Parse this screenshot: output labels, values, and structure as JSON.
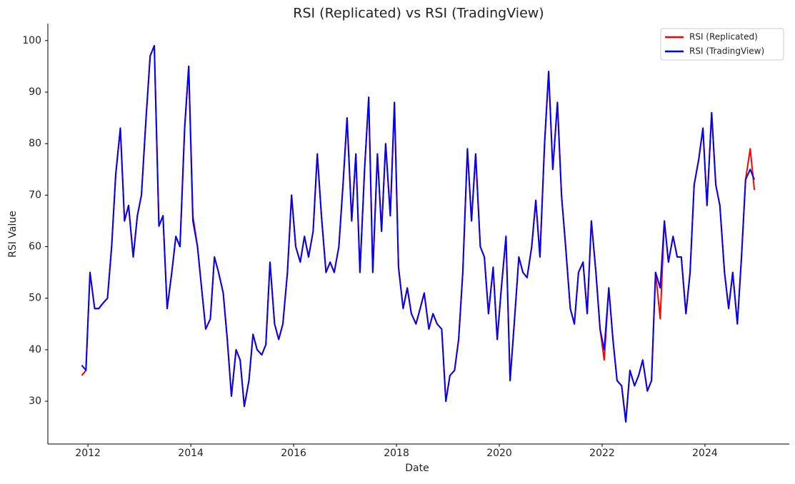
{
  "chart_data": {
    "type": "line",
    "title": "RSI (Replicated) vs RSI (TradingView)",
    "xlabel": "Date",
    "ylabel": "RSI Value",
    "xlim": [
      2011.22,
      2025.64
    ],
    "xticks": [
      2012,
      2014,
      2016,
      2018,
      2020,
      2022,
      2024
    ],
    "ylim": [
      21.7,
      103.3
    ],
    "yticks": [
      30,
      40,
      50,
      60,
      70,
      80,
      90,
      100
    ],
    "legend": "upper right",
    "x": [
      2011.88,
      2011.96,
      2012.04,
      2012.13,
      2012.21,
      2012.29,
      2012.38,
      2012.46,
      2012.54,
      2012.63,
      2012.71,
      2012.79,
      2012.88,
      2012.96,
      2013.04,
      2013.13,
      2013.21,
      2013.29,
      2013.38,
      2013.46,
      2013.54,
      2013.63,
      2013.71,
      2013.79,
      2013.88,
      2013.96,
      2014.04,
      2014.13,
      2014.21,
      2014.29,
      2014.38,
      2014.46,
      2014.54,
      2014.63,
      2014.71,
      2014.79,
      2014.88,
      2014.96,
      2015.04,
      2015.13,
      2015.21,
      2015.29,
      2015.38,
      2015.46,
      2015.54,
      2015.63,
      2015.71,
      2015.79,
      2015.88,
      2015.96,
      2016.04,
      2016.13,
      2016.21,
      2016.29,
      2016.38,
      2016.46,
      2016.54,
      2016.63,
      2016.71,
      2016.79,
      2016.88,
      2016.96,
      2017.04,
      2017.13,
      2017.21,
      2017.29,
      2017.38,
      2017.46,
      2017.54,
      2017.63,
      2017.71,
      2017.79,
      2017.88,
      2017.96,
      2018.04,
      2018.13,
      2018.21,
      2018.29,
      2018.38,
      2018.46,
      2018.54,
      2018.63,
      2018.71,
      2018.79,
      2018.88,
      2018.96,
      2019.04,
      2019.13,
      2019.21,
      2019.29,
      2019.38,
      2019.46,
      2019.54,
      2019.63,
      2019.71,
      2019.79,
      2019.88,
      2019.96,
      2020.04,
      2020.13,
      2020.21,
      2020.29,
      2020.38,
      2020.46,
      2020.54,
      2020.63,
      2020.71,
      2020.79,
      2020.88,
      2020.96,
      2021.04,
      2021.13,
      2021.21,
      2021.29,
      2021.38,
      2021.46,
      2021.54,
      2021.63,
      2021.71,
      2021.79,
      2021.88,
      2021.96,
      2022.04,
      2022.13,
      2022.21,
      2022.29,
      2022.38,
      2022.46,
      2022.54,
      2022.63,
      2022.71,
      2022.79,
      2022.88,
      2022.96,
      2023.04,
      2023.13,
      2023.21,
      2023.29,
      2023.38,
      2023.46,
      2023.54,
      2023.63,
      2023.71,
      2023.79,
      2023.88,
      2023.96,
      2024.04,
      2024.13,
      2024.21,
      2024.29,
      2024.38,
      2024.46,
      2024.54,
      2024.63,
      2024.71,
      2024.79,
      2024.88,
      2024.96
    ],
    "series": [
      {
        "name": "RSI (Replicated)",
        "color": "#ff0000",
        "values": [
          35,
          36,
          55,
          48,
          48,
          49,
          50,
          60,
          74,
          83,
          65,
          68,
          58,
          66,
          70,
          85,
          97,
          99,
          64,
          66,
          48,
          55,
          62,
          60,
          83,
          95,
          66,
          60,
          52,
          44,
          46,
          58,
          55,
          51,
          42,
          31,
          40,
          38,
          29,
          34,
          43,
          40,
          39,
          41,
          57,
          45,
          42,
          45,
          55,
          70,
          60,
          57,
          62,
          58,
          63,
          78,
          66,
          55,
          57,
          55,
          60,
          72,
          85,
          65,
          78,
          55,
          75,
          89,
          55,
          78,
          63,
          80,
          66,
          88,
          56,
          48,
          52,
          47,
          45,
          48,
          51,
          44,
          47,
          45,
          44,
          30,
          35,
          36,
          42,
          55,
          79,
          65,
          78,
          60,
          58,
          47,
          56,
          42,
          52,
          62,
          34,
          45,
          58,
          55,
          54,
          60,
          69,
          58,
          80,
          94,
          75,
          88,
          70,
          60,
          48,
          45,
          55,
          57,
          47,
          65,
          55,
          44,
          38,
          52,
          42,
          34,
          33,
          26,
          36,
          33,
          35,
          38,
          32,
          34,
          55,
          46,
          65,
          57,
          62,
          58,
          58,
          47,
          55,
          72,
          77,
          83,
          68,
          86,
          72,
          68,
          55,
          48,
          55,
          45,
          58,
          73,
          79,
          71
        ]
      },
      {
        "name": "RSI (TradingView)",
        "color": "#0000ff",
        "values": [
          37,
          36,
          55,
          48,
          48,
          49,
          50,
          60,
          74,
          83,
          65,
          68,
          58,
          66,
          70,
          85,
          97,
          99,
          64,
          66,
          48,
          55,
          62,
          60,
          83,
          95,
          65,
          60,
          52,
          44,
          46,
          58,
          55,
          51,
          42,
          31,
          40,
          38,
          29,
          34,
          43,
          40,
          39,
          41,
          57,
          45,
          42,
          45,
          55,
          70,
          60,
          57,
          62,
          58,
          63,
          78,
          66,
          55,
          57,
          55,
          60,
          72,
          85,
          65,
          78,
          55,
          75,
          89,
          55,
          78,
          63,
          80,
          66,
          88,
          56,
          48,
          52,
          47,
          45,
          48,
          51,
          44,
          47,
          45,
          44,
          30,
          35,
          36,
          42,
          55,
          79,
          65,
          78,
          60,
          58,
          47,
          56,
          42,
          52,
          62,
          34,
          45,
          58,
          55,
          54,
          60,
          69,
          58,
          80,
          94,
          75,
          88,
          70,
          60,
          48,
          45,
          55,
          57,
          47,
          65,
          55,
          44,
          40,
          52,
          42,
          34,
          33,
          26,
          36,
          33,
          35,
          38,
          32,
          34,
          55,
          52,
          65,
          57,
          62,
          58,
          58,
          47,
          55,
          72,
          77,
          83,
          68,
          86,
          72,
          68,
          55,
          48,
          55,
          45,
          58,
          73,
          75,
          73
        ]
      }
    ]
  }
}
